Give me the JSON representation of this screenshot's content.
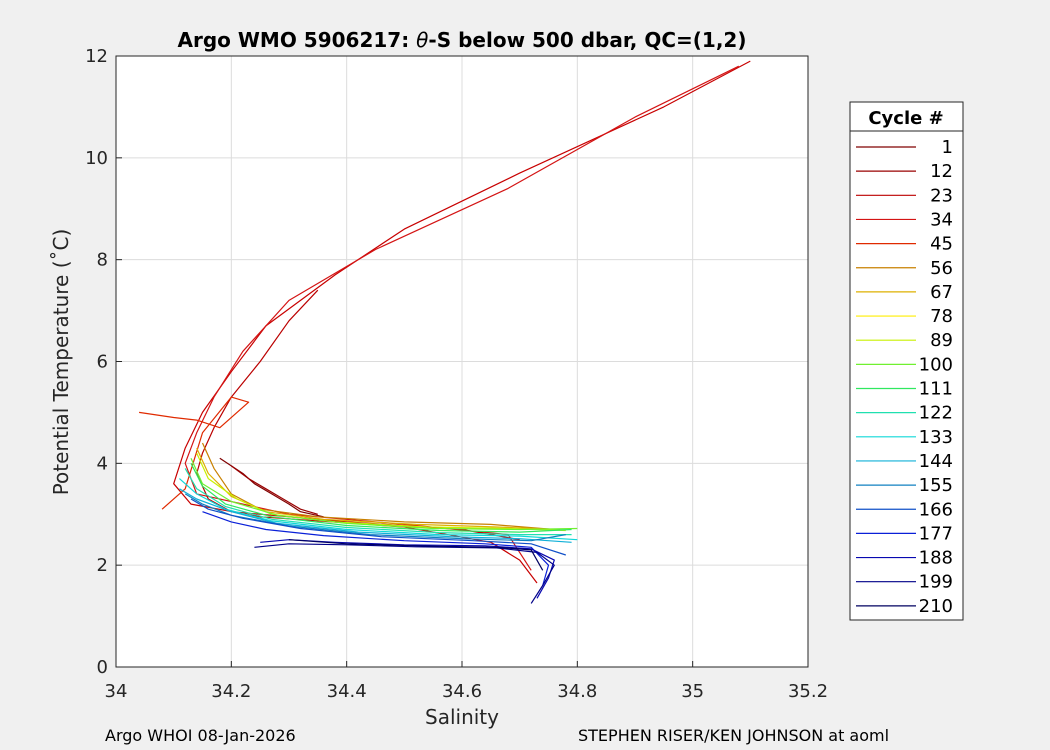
{
  "chart_data": {
    "type": "line",
    "title_prefix": "Argo WMO 5906217: ",
    "title_theta": "θ",
    "title_suffix": "-S below 500 dbar,  QC=(1,2)",
    "xlabel": "Salinity",
    "ylabel": "Potential Temperature (˚C)",
    "xlim": [
      34.0,
      35.2
    ],
    "ylim": [
      0,
      12
    ],
    "xticks": [
      "34",
      "34.2",
      "34.4",
      "34.6",
      "34.8",
      "35",
      "35.2"
    ],
    "yticks": [
      "0",
      "2",
      "4",
      "6",
      "8",
      "10",
      "12"
    ],
    "grid": true,
    "legend": {
      "title": "Cycle #",
      "placement": "right, outside",
      "entries": [
        {
          "label": "1",
          "color": "#800000"
        },
        {
          "label": "12",
          "color": "#9a0000"
        },
        {
          "label": "23",
          "color": "#bb0000"
        },
        {
          "label": "34",
          "color": "#d41414"
        },
        {
          "label": "45",
          "color": "#e02a00"
        },
        {
          "label": "56",
          "color": "#c88000"
        },
        {
          "label": "67",
          "color": "#ddb000"
        },
        {
          "label": "78",
          "color": "#ffee00"
        },
        {
          "label": "89",
          "color": "#c8f000"
        },
        {
          "label": "100",
          "color": "#70f030"
        },
        {
          "label": "111",
          "color": "#30e860"
        },
        {
          "label": "122",
          "color": "#20e0b0"
        },
        {
          "label": "133",
          "color": "#10d8d8"
        },
        {
          "label": "144",
          "color": "#10b0d8"
        },
        {
          "label": "155",
          "color": "#1080c0"
        },
        {
          "label": "166",
          "color": "#1050c8"
        },
        {
          "label": "177",
          "color": "#0a20d8"
        },
        {
          "label": "188",
          "color": "#0808b0"
        },
        {
          "label": "199",
          "color": "#000088"
        },
        {
          "label": "210",
          "color": "#000060"
        }
      ]
    },
    "series": [
      {
        "color": "#c80000",
        "x": [
          35.1,
          34.95,
          34.7,
          34.5,
          34.38,
          34.26,
          34.2,
          34.15,
          34.12,
          34.1,
          34.13,
          34.25,
          34.5,
          34.65,
          34.7,
          34.73
        ],
        "y": [
          11.9,
          11.0,
          9.7,
          8.6,
          7.7,
          6.7,
          5.8,
          5.0,
          4.3,
          3.6,
          3.2,
          2.95,
          2.75,
          2.45,
          2.1,
          1.65
        ]
      },
      {
        "color": "#d41414",
        "x": [
          35.08,
          34.9,
          34.68,
          34.45,
          34.3,
          34.22,
          34.17,
          34.14,
          34.12,
          34.14,
          34.3,
          34.5,
          34.68,
          34.72
        ],
        "y": [
          11.8,
          10.8,
          9.4,
          8.2,
          7.2,
          6.2,
          5.3,
          4.6,
          4.0,
          3.4,
          3.0,
          2.8,
          2.6,
          1.9
        ]
      },
      {
        "color": "#bb0000",
        "x": [
          34.35,
          34.3,
          34.25,
          34.2,
          34.17,
          34.15,
          34.14,
          34.16,
          34.2,
          34.4,
          34.6,
          34.7
        ],
        "y": [
          7.4,
          6.8,
          6.0,
          5.3,
          4.7,
          4.2,
          3.8,
          3.3,
          3.05,
          2.85,
          2.7,
          2.5
        ]
      },
      {
        "color": "#800000",
        "x": [
          34.18,
          34.22,
          34.24,
          34.27,
          34.3,
          34.32,
          34.36
        ],
        "y": [
          4.1,
          3.8,
          3.6,
          3.4,
          3.2,
          3.05,
          2.95
        ]
      },
      {
        "color": "#9a0000",
        "x": [
          34.2,
          34.23,
          34.26,
          34.29,
          34.32,
          34.35
        ],
        "y": [
          3.95,
          3.7,
          3.5,
          3.3,
          3.1,
          3.0
        ]
      },
      {
        "color": "#e02a00",
        "x": [
          34.04,
          34.1,
          34.14,
          34.18,
          34.23,
          34.2,
          34.15,
          34.12,
          34.08
        ],
        "y": [
          5.0,
          4.9,
          4.85,
          4.7,
          5.2,
          5.3,
          4.6,
          3.5,
          3.1
        ]
      },
      {
        "color": "#c88000",
        "x": [
          34.15,
          34.17,
          34.2,
          34.25,
          34.35,
          34.5,
          34.65,
          34.76
        ],
        "y": [
          4.4,
          3.9,
          3.4,
          3.1,
          2.95,
          2.85,
          2.8,
          2.7
        ]
      },
      {
        "color": "#ddb000",
        "x": [
          34.14,
          34.16,
          34.2,
          34.26,
          34.36,
          34.52,
          34.66,
          34.77
        ],
        "y": [
          4.3,
          3.8,
          3.35,
          3.05,
          2.9,
          2.8,
          2.75,
          2.7
        ]
      },
      {
        "color": "#c8f000",
        "x": [
          34.14,
          34.16,
          34.21,
          34.27,
          34.38,
          34.54,
          34.68,
          34.78
        ],
        "y": [
          4.2,
          3.7,
          3.3,
          3.0,
          2.85,
          2.75,
          2.72,
          2.68
        ]
      },
      {
        "color": "#70f030",
        "x": [
          34.13,
          34.15,
          34.2,
          34.28,
          34.4,
          34.55,
          34.7,
          34.8
        ],
        "y": [
          4.1,
          3.6,
          3.25,
          2.98,
          2.82,
          2.72,
          2.7,
          2.72
        ]
      },
      {
        "color": "#30e860",
        "x": [
          34.13,
          34.15,
          34.19,
          34.27,
          34.4,
          34.56,
          34.7,
          34.79
        ],
        "y": [
          4.0,
          3.55,
          3.2,
          2.95,
          2.78,
          2.68,
          2.65,
          2.7
        ]
      },
      {
        "color": "#20e0b0",
        "x": [
          34.12,
          34.14,
          34.19,
          34.27,
          34.4,
          34.56,
          34.7,
          34.79
        ],
        "y": [
          3.9,
          3.5,
          3.15,
          2.9,
          2.74,
          2.64,
          2.6,
          2.6
        ]
      },
      {
        "color": "#10d8d8",
        "x": [
          34.11,
          34.14,
          34.19,
          34.27,
          34.4,
          34.56,
          34.7,
          34.8
        ],
        "y": [
          3.7,
          3.4,
          3.1,
          2.87,
          2.7,
          2.6,
          2.57,
          2.5
        ]
      },
      {
        "color": "#10b0d8",
        "x": [
          34.11,
          34.14,
          34.2,
          34.28,
          34.42,
          34.58,
          34.7,
          34.79
        ],
        "y": [
          3.5,
          3.3,
          3.05,
          2.82,
          2.65,
          2.56,
          2.52,
          2.45
        ]
      },
      {
        "color": "#1080c0",
        "x": [
          34.12,
          34.15,
          34.2,
          34.3,
          34.44,
          34.6,
          34.72,
          34.78
        ],
        "y": [
          3.4,
          3.2,
          2.98,
          2.77,
          2.6,
          2.52,
          2.48,
          2.6
        ]
      },
      {
        "color": "#1050c8",
        "x": [
          34.13,
          34.16,
          34.22,
          34.32,
          34.46,
          34.62,
          34.72,
          34.78
        ],
        "y": [
          3.3,
          3.1,
          2.92,
          2.72,
          2.56,
          2.48,
          2.42,
          2.2
        ]
      },
      {
        "color": "#0a20d8",
        "x": [
          34.15,
          34.2,
          34.26,
          34.36,
          34.5,
          34.64,
          34.72,
          34.75,
          34.74
        ],
        "y": [
          3.05,
          2.85,
          2.7,
          2.58,
          2.48,
          2.42,
          2.35,
          2.0,
          1.6
        ]
      },
      {
        "color": "#0808b0",
        "x": [
          34.25,
          34.3,
          34.38,
          34.5,
          34.64,
          34.72,
          34.76,
          34.75,
          34.73
        ],
        "y": [
          2.45,
          2.5,
          2.45,
          2.4,
          2.38,
          2.32,
          2.1,
          1.75,
          1.35
        ]
      },
      {
        "color": "#000088",
        "x": [
          34.24,
          34.3,
          34.4,
          34.52,
          34.66,
          34.73,
          34.76,
          34.74,
          34.72
        ],
        "y": [
          2.35,
          2.42,
          2.4,
          2.36,
          2.34,
          2.25,
          2.0,
          1.6,
          1.25
        ]
      },
      {
        "color": "#000060",
        "x": [
          34.3,
          34.4,
          34.52,
          34.66,
          34.72,
          34.74
        ],
        "y": [
          2.5,
          2.42,
          2.38,
          2.35,
          2.3,
          1.9
        ]
      }
    ]
  },
  "footer": {
    "left": "Argo WHOI 08-Jan-2026",
    "right": "STEPHEN RISER/KEN JOHNSON at aoml"
  }
}
